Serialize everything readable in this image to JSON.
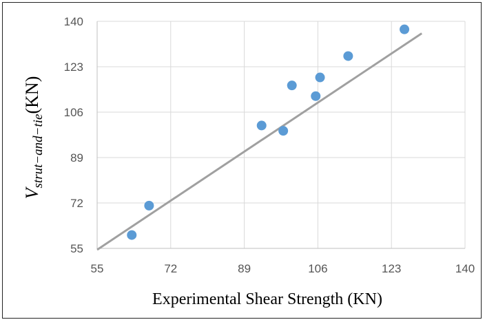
{
  "chart_data": {
    "type": "scatter",
    "xlabel": "Experimental Shear Strength (KN)",
    "ylabel_main": "V",
    "ylabel_sub": "strut−and−tie",
    "ylabel_unit": "(KN)",
    "xlim": [
      55,
      140
    ],
    "ylim": [
      55,
      140
    ],
    "xticks": [
      "55",
      "72",
      "89",
      "106",
      "123",
      "140"
    ],
    "yticks": [
      "55",
      "72",
      "89",
      "106",
      "123",
      "140"
    ],
    "grid": true,
    "points": [
      {
        "x": 63.0,
        "y": 60.0
      },
      {
        "x": 67.0,
        "y": 71.0
      },
      {
        "x": 93.0,
        "y": 101.0
      },
      {
        "x": 98.0,
        "y": 99.0
      },
      {
        "x": 100.0,
        "y": 116.0
      },
      {
        "x": 105.5,
        "y": 112.0
      },
      {
        "x": 106.5,
        "y": 119.0
      },
      {
        "x": 113.0,
        "y": 127.0
      },
      {
        "x": 126.0,
        "y": 137.0
      }
    ],
    "trendline": {
      "x": [
        55,
        130
      ],
      "y": [
        54.5,
        135.5
      ]
    },
    "colors": {
      "marker": "#5b9bd5",
      "trendline": "#a0a0a0",
      "grid": "#d9d9d9"
    }
  }
}
